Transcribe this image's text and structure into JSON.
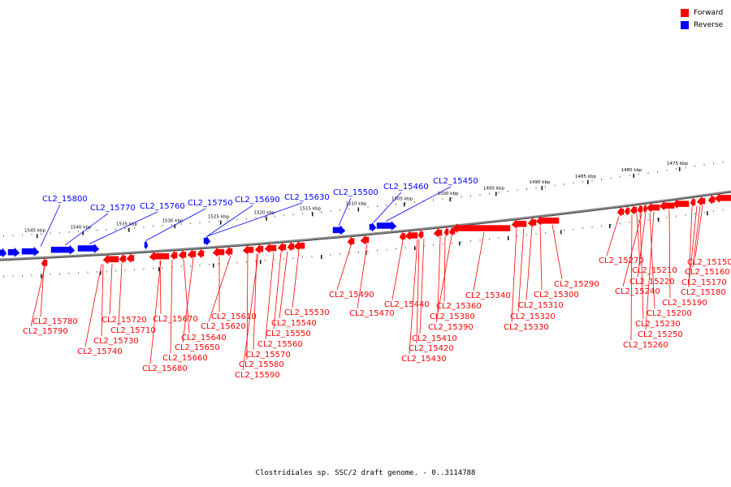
{
  "legend": {
    "forward_label": "Forward",
    "reverse_label": "Reverse",
    "forward_color": "#ff0000",
    "reverse_color": "#0000ff"
  },
  "caption": "Clostridiales sp. SSC/2 draft genome. - 0..3114788",
  "scale": {
    "ticks": [
      "1545 kbp",
      "1540 kbp",
      "1535 kbp",
      "1530 kbp",
      "1525 kbp",
      "1520 kbp",
      "1515 kbp",
      "1510 kbp",
      "1505 kbp",
      "1500 kbp",
      "1495 kbp",
      "1490 kbp",
      "1485 kbp",
      "1480 kbp",
      "1475 kbp"
    ]
  },
  "reverse_labels": [
    "CL2_15800",
    "CL2_15770",
    "CL2_15760",
    "CL2_15750",
    "CL2_15690",
    "CL2_15630",
    "CL2_15500",
    "CL2_15460",
    "CL2_15450"
  ],
  "forward_labels": [
    "CL2_15780",
    "CL2_15790",
    "CL2_15720",
    "CL2_15710",
    "CL2_15730",
    "CL2_15740",
    "CL2_15670",
    "CL2_15640",
    "CL2_15650",
    "CL2_15660",
    "CL2_15680",
    "CL2_15610",
    "CL2_15620",
    "CL2_15530",
    "CL2_15540",
    "CL2_15550",
    "CL2_15560",
    "CL2_15570",
    "CL2_15580",
    "CL2_15590",
    "CL2_15490",
    "CL2_15470",
    "CL2_15440",
    "CL2_15360",
    "CL2_15380",
    "CL2_15390",
    "CL2_15410",
    "CL2_15420",
    "CL2_15430",
    "CL2_15340",
    "CL2_15290",
    "CL2_15300",
    "CL2_15310",
    "CL2_15320",
    "CL2_15330",
    "CL2_15270",
    "CL2_15210",
    "CL2_15220",
    "CL2_15240",
    "CL2_15200",
    "CL2_15230",
    "CL2_15250",
    "CL2_15260",
    "CL2_15150",
    "CL2_15160",
    "CL2_15170",
    "CL2_15180",
    "CL2_15190"
  ]
}
